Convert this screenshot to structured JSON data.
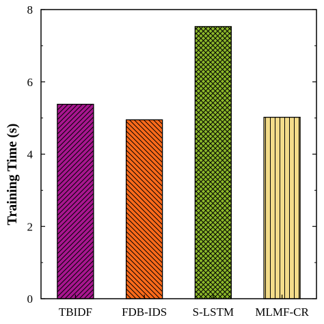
{
  "chart_data": {
    "type": "bar",
    "categories": [
      "TBIDF",
      "FDB-IDS",
      "S-LSTM",
      "MLMF-CR"
    ],
    "values": [
      5.38,
      4.95,
      7.53,
      5.02
    ],
    "ylabel": "Training Time (s)",
    "xlabel": "",
    "ylim": [
      0,
      8
    ],
    "yticks": [
      "0",
      "2",
      "4",
      "6",
      "8"
    ],
    "grid": false,
    "bar_colors": [
      "#a8168f",
      "#ff6a1a",
      "#8cb82a",
      "#f3dc8a"
    ],
    "bar_patterns": [
      "diagonal-up",
      "diagonal-down",
      "crosshatch",
      "vertical"
    ]
  }
}
